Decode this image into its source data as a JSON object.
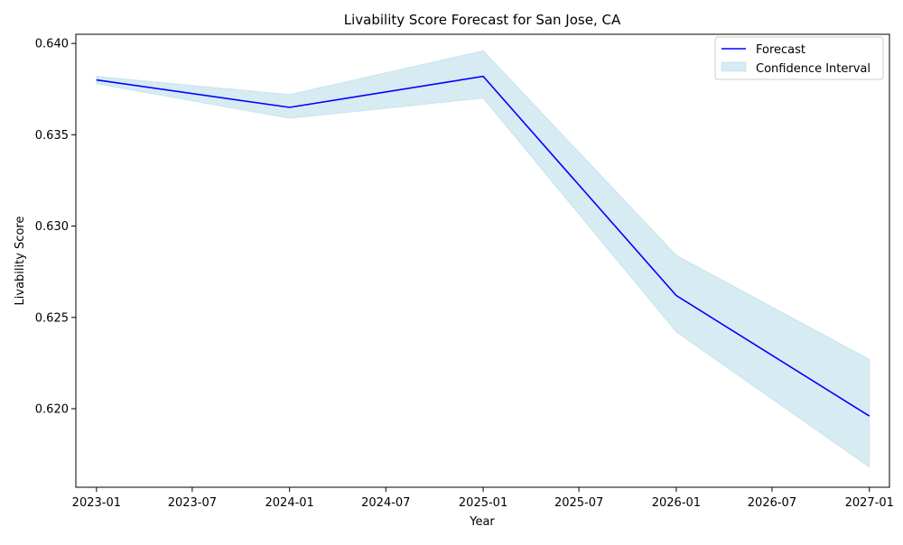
{
  "chart_data": {
    "type": "line",
    "title": "Livability Score Forecast for San Jose, CA",
    "xlabel": "Year",
    "ylabel": "Livability Score",
    "x_ticks": [
      "2023-01",
      "2023-07",
      "2024-01",
      "2024-07",
      "2025-01",
      "2025-07",
      "2026-01",
      "2026-07",
      "2027-01"
    ],
    "y_ticks": [
      "0.620",
      "0.625",
      "0.630",
      "0.635",
      "0.640"
    ],
    "xlim": [
      "2022-11-23",
      "2027-02-08"
    ],
    "ylim": [
      0.6157,
      0.6405
    ],
    "x": [
      "2023-01-01",
      "2024-01-01",
      "2025-01-01",
      "2026-01-01",
      "2027-01-01"
    ],
    "series": [
      {
        "name": "Forecast",
        "values": [
          0.638,
          0.6365,
          0.6382,
          0.6262,
          0.6196
        ],
        "color": "#0000ff"
      }
    ],
    "band": {
      "name": "Confidence Interval",
      "lower": [
        0.6378,
        0.6359,
        0.637,
        0.6242,
        0.6168
      ],
      "upper": [
        0.6382,
        0.6372,
        0.6396,
        0.6284,
        0.6227
      ],
      "color": "#add8e6"
    },
    "legend": {
      "position": "top-right"
    },
    "grid": false
  }
}
